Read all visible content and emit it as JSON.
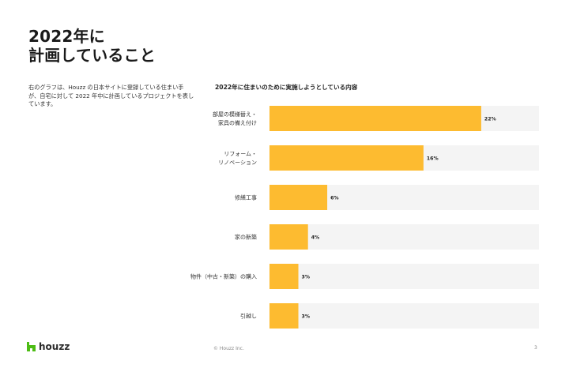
{
  "slide": {
    "title": "2022年に\n計画していること",
    "description": "右のグラフは、Houzz の日本サイトに登録している住まい手が、自宅に対して 2022 年中に計画しているプロジェクトを表しています。"
  },
  "footer": {
    "logo": "houzz",
    "copyright": "© Houzz Inc.",
    "page_number": "3"
  },
  "colors": {
    "bar": "#FDBB30",
    "track": "#F4F4F4",
    "logo_mark": "#4DBC15"
  },
  "chart_data": {
    "type": "bar",
    "orientation": "horizontal",
    "title": "2022年に住まいのために実施しようとしている内容",
    "categories": [
      "部屋の模様替え・\n家具の備え付け",
      "リフォーム・\nリノベーション",
      "修繕工事",
      "家の新築",
      "物件（中古・新築）の購入",
      "引越し"
    ],
    "values": [
      22,
      16,
      6,
      4,
      3,
      3
    ],
    "value_labels": [
      "22%",
      "16%",
      "6%",
      "4%",
      "3%",
      "3%"
    ],
    "unit": "%",
    "xlim": [
      0,
      28
    ],
    "grid": false,
    "legend": "none"
  }
}
